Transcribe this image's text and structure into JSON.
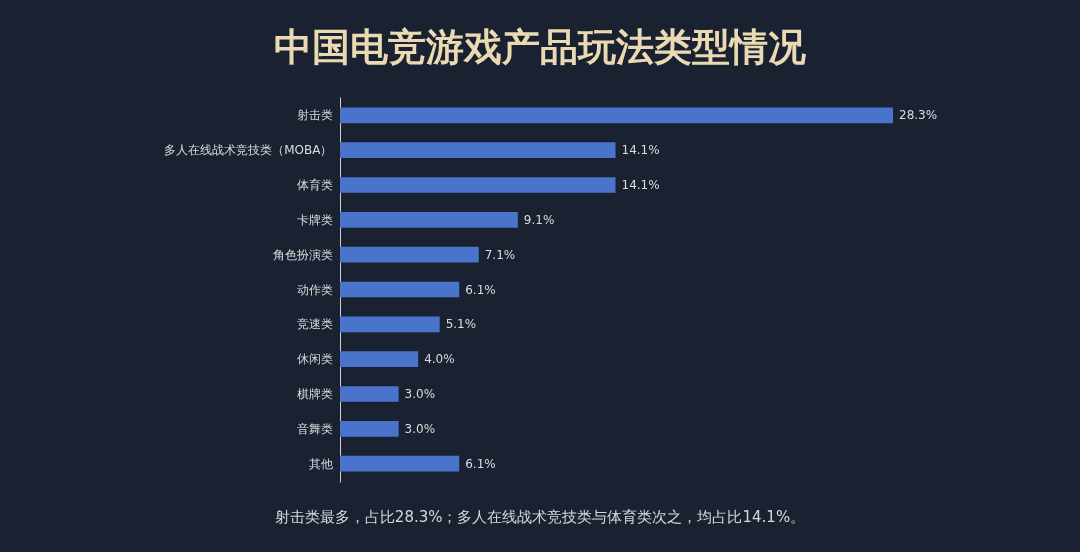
{
  "chart_data": {
    "type": "bar",
    "orientation": "horizontal",
    "title": "中国电竞游戏产品玩法类型情况",
    "categories": [
      "射击类",
      "多人在线战术竞技类（MOBA）",
      "体育类",
      "卡牌类",
      "角色扮演类",
      "动作类",
      "竞速类",
      "休闲类",
      "棋牌类",
      "音舞类",
      "其他"
    ],
    "values": [
      28.3,
      14.1,
      14.1,
      9.1,
      7.1,
      6.1,
      5.1,
      4.0,
      3.0,
      3.0,
      6.1
    ],
    "value_labels": [
      "28.3%",
      "14.1%",
      "14.1%",
      "9.1%",
      "7.1%",
      "6.1%",
      "5.1%",
      "4.0%",
      "3.0%",
      "3.0%",
      "6.1%"
    ],
    "color": "#4a74cc",
    "annotations": [
      "射击类最多，占比28.3%；多人在线战术竞技类与体育类次之，均占比14.1%。"
    ]
  }
}
